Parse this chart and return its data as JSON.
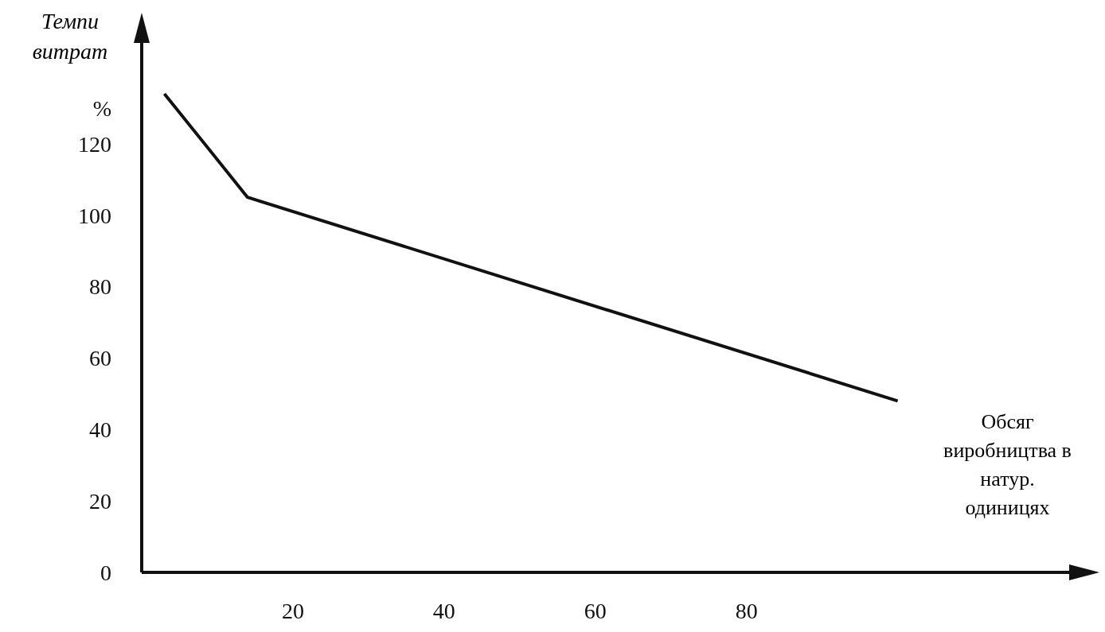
{
  "chart_data": {
    "type": "line",
    "ylabel": "Темпи витрат",
    "xlabel": "Обсяг виробництва в натур. одиницях",
    "x": [
      3,
      14,
      100
    ],
    "series": [
      {
        "color": "#111111",
        "values": [
          134,
          105,
          48
        ]
      }
    ],
    "xlim": [
      0,
      123
    ],
    "xticks": [
      20,
      40,
      60,
      80
    ],
    "ylim": [
      0,
      150
    ],
    "yticks": [
      0,
      20,
      40,
      60,
      80,
      100,
      120,
      {
        "value": 130,
        "label": "%"
      }
    ],
    "grid": false,
    "legend": false,
    "marker": "none",
    "line_style": "solid"
  }
}
